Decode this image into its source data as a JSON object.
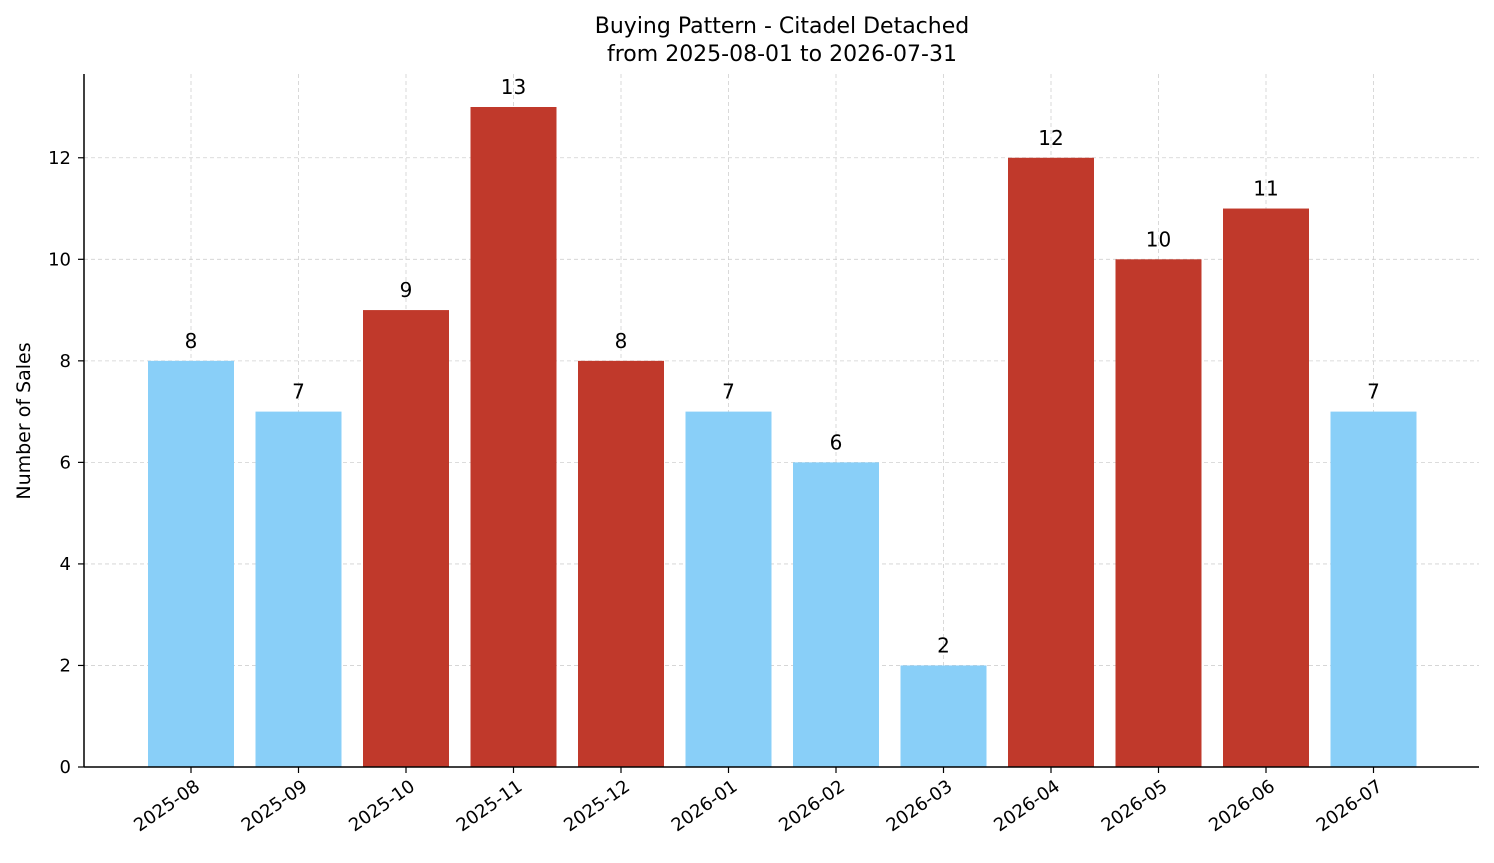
{
  "chart_data": {
    "type": "bar",
    "title": "Buying Pattern - Citadel Detached",
    "subtitle": "from 2025-08-01 to 2026-07-31",
    "xlabel": "",
    "ylabel": "Number of Sales",
    "categories": [
      "2025-08",
      "2025-09",
      "2025-10",
      "2025-11",
      "2025-12",
      "2026-01",
      "2026-02",
      "2026-03",
      "2026-04",
      "2026-05",
      "2026-06",
      "2026-07"
    ],
    "values": [
      8,
      7,
      9,
      13,
      8,
      7,
      6,
      2,
      12,
      10,
      11,
      7
    ],
    "bar_colors": [
      "#89cff8",
      "#89cff8",
      "#c0392b",
      "#c0392b",
      "#c0392b",
      "#89cff8",
      "#89cff8",
      "#89cff8",
      "#c0392b",
      "#c0392b",
      "#c0392b",
      "#89cff8"
    ],
    "ylim": [
      0,
      13.65
    ],
    "yticks": [
      0,
      2,
      4,
      6,
      8,
      10,
      12
    ],
    "grid": true,
    "legend": "none",
    "data_labels": true
  }
}
